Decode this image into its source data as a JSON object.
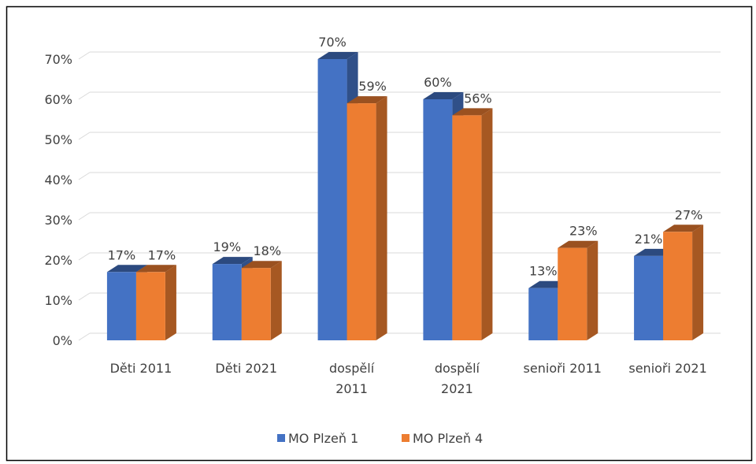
{
  "chart_data": {
    "type": "bar3d",
    "categories": [
      "Děti 2011",
      "Děti 2021",
      "dospělí\n2011",
      "dospělí\n2021",
      "senioři 2011",
      "senioři 2021"
    ],
    "series": [
      {
        "name": "MO Plzeň 1",
        "color": "#4472c4",
        "values": [
          17,
          19,
          70,
          60,
          13,
          21
        ],
        "value_labels": [
          "17%",
          "19%",
          "70%",
          "60%",
          "13%",
          "21%"
        ]
      },
      {
        "name": "MO Plzeň 4",
        "color": "#ed7d31",
        "values": [
          17,
          18,
          59,
          56,
          23,
          27
        ],
        "value_labels": [
          "17%",
          "18%",
          "59%",
          "56%",
          "23%",
          "27%"
        ]
      }
    ],
    "ylim": [
      0,
      70
    ],
    "yticks": [
      {
        "value": 0,
        "label": "0%"
      },
      {
        "value": 10,
        "label": "10%"
      },
      {
        "value": 20,
        "label": "20%"
      },
      {
        "value": 30,
        "label": "30%"
      },
      {
        "value": 40,
        "label": "40%"
      },
      {
        "value": 50,
        "label": "50%"
      },
      {
        "value": 60,
        "label": "60%"
      },
      {
        "value": 70,
        "label": "70%"
      }
    ],
    "grid": true,
    "legend": "bottom"
  }
}
